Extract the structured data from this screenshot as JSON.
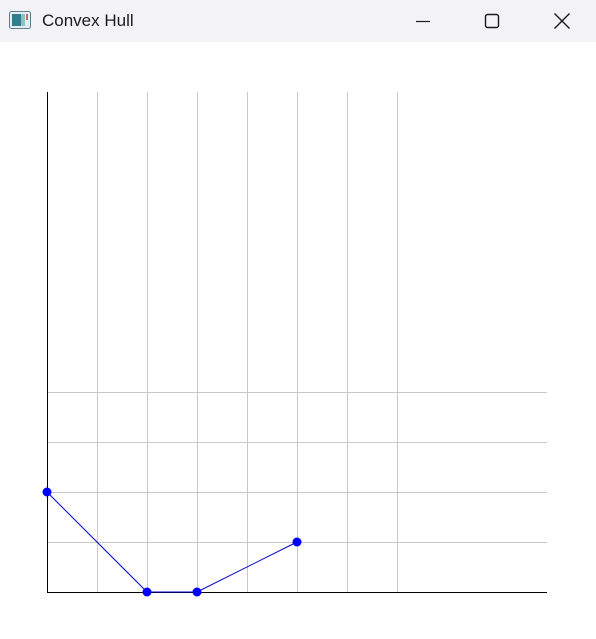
{
  "window": {
    "title": "Convex Hull",
    "icon": "app-window-icon",
    "controls": [
      "minimize-icon",
      "maximize-icon",
      "close-icon"
    ]
  },
  "chart_data": {
    "type": "line",
    "title": "",
    "xlabel": "",
    "ylabel": "",
    "grid": true,
    "xlim": [
      0,
      10
    ],
    "ylim": [
      0,
      10
    ],
    "colors": {
      "hull": "#0000cc",
      "points": "#0000ff",
      "grid": "#c8c8c8",
      "axis": "#000000"
    },
    "x_gridlines": [
      1,
      2,
      3,
      4,
      5,
      6,
      7
    ],
    "y_gridlines": [
      1,
      2,
      3,
      4
    ],
    "series": [
      {
        "x": [
          0,
          2,
          3,
          5
        ],
        "y": [
          2,
          0,
          0,
          1
        ]
      }
    ]
  }
}
